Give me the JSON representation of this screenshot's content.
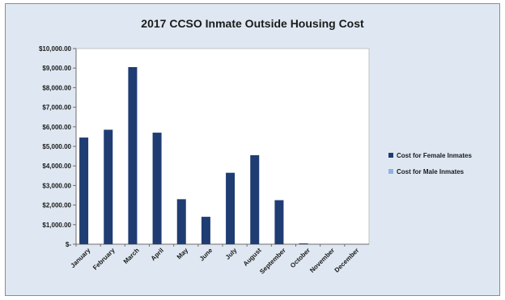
{
  "chart_data": {
    "type": "bar",
    "title": "2017 CCSO Inmate Outside Housing Cost",
    "categories": [
      "January",
      "February",
      "March",
      "April",
      "May",
      "June",
      "July",
      "August",
      "September",
      "October",
      "November",
      "December"
    ],
    "series": [
      {
        "name": "Cost for Female Inmates",
        "color": "#1f3c73",
        "values": [
          5450,
          5850,
          9050,
          5700,
          2300,
          1400,
          3650,
          4550,
          2250,
          40,
          0,
          0
        ]
      },
      {
        "name": "Cost for Male Inmates",
        "color": "#8fb4e3",
        "values": [
          0,
          0,
          0,
          0,
          0,
          0,
          0,
          0,
          0,
          0,
          0,
          0
        ]
      }
    ],
    "y_tick_labels": [
      "$-",
      "$1,000.00",
      "$2,000.00",
      "$3,000.00",
      "$4,000.00",
      "$5,000.00",
      "$6,000.00",
      "$7,000.00",
      "$8,000.00",
      "$9,000.00",
      "$10,000.00"
    ],
    "ylim": [
      0,
      10000
    ],
    "grid": false,
    "legend_position": "right"
  }
}
